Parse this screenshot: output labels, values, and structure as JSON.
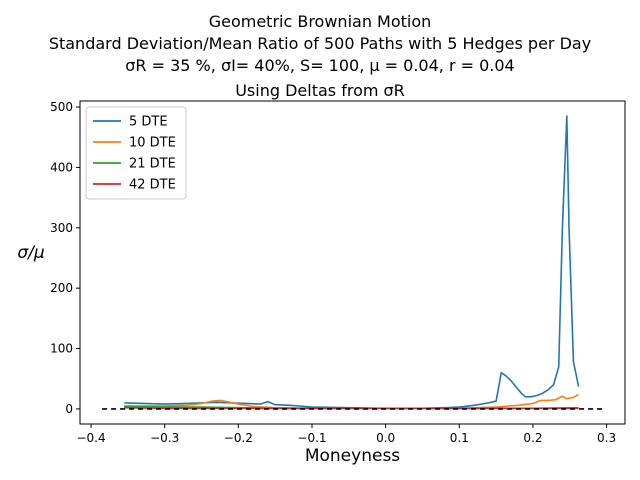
{
  "chart_data": {
    "type": "line",
    "title_lines": [
      "Geometric Brownian Motion",
      "Standard Deviation/Mean Ratio of 500 Paths with 5 Hedges per Day"
    ],
    "param_line": {
      "sigma_r_label": "σR = 35 %,",
      "sigma_i_label": "σI= 40%,",
      "rest": "S= 100, μ = 0.04, r = 0.04"
    },
    "subtitle": "Using Deltas from σR",
    "xlabel": "Moneyness",
    "ylabel": "σ/μ",
    "xlim": [
      -0.415,
      0.325
    ],
    "ylim": [
      -25,
      510
    ],
    "xticks": [
      -0.4,
      -0.3,
      -0.2,
      -0.1,
      0.0,
      0.1,
      0.2,
      0.3
    ],
    "xtick_labels": [
      "−0.4",
      "−0.3",
      "−0.2",
      "−0.1",
      "0.0",
      "0.1",
      "0.2",
      "0.3"
    ],
    "yticks": [
      0,
      100,
      200,
      300,
      400,
      500
    ],
    "ytick_labels": [
      "0",
      "100",
      "200",
      "300",
      "400",
      "500"
    ],
    "legend_position": "upper-left",
    "reference_line": {
      "y": 0,
      "x": [
        -0.385,
        0.295
      ],
      "style": "dashed",
      "color": "#000000"
    },
    "series": [
      {
        "name": "5 DTE",
        "color": "#1f77b4",
        "x": [
          -0.355,
          -0.33,
          -0.3,
          -0.27,
          -0.25,
          -0.23,
          -0.21,
          -0.19,
          -0.17,
          -0.16,
          -0.15,
          -0.13,
          -0.12,
          -0.1,
          -0.05,
          0.0,
          0.05,
          0.08,
          0.1,
          0.12,
          0.14,
          0.15,
          0.157,
          0.163,
          0.17,
          0.178,
          0.185,
          0.19,
          0.197,
          0.205,
          0.213,
          0.22,
          0.228,
          0.235,
          0.24,
          0.246,
          0.249,
          0.255,
          0.262
        ],
        "y": [
          10,
          9,
          8,
          9,
          10,
          11,
          10,
          9,
          8,
          12,
          7,
          6,
          5,
          3,
          2,
          1,
          1,
          2,
          3,
          6,
          10,
          13,
          60,
          55,
          47,
          35,
          25,
          20,
          20,
          22,
          26,
          31,
          40,
          70,
          300,
          485,
          300,
          78,
          37
        ]
      },
      {
        "name": "10 DTE",
        "color": "#ff7f0e",
        "x": [
          -0.355,
          -0.3,
          -0.27,
          -0.25,
          -0.235,
          -0.225,
          -0.215,
          -0.2,
          -0.18,
          -0.15,
          -0.1,
          0.0,
          0.1,
          0.15,
          0.18,
          0.2,
          0.21,
          0.22,
          0.23,
          0.24,
          0.245,
          0.255,
          0.262
        ],
        "y": [
          5,
          5,
          6,
          9,
          13,
          14,
          12,
          8,
          4,
          2,
          1,
          1,
          1,
          3,
          6,
          9,
          14,
          14,
          15,
          21,
          17,
          19,
          24
        ]
      },
      {
        "name": "21 DTE",
        "color": "#2ca02c",
        "x": [
          -0.355,
          -0.3,
          -0.25,
          -0.2,
          -0.15,
          -0.1,
          0.0,
          0.1,
          0.2,
          0.262
        ],
        "y": [
          4,
          3,
          3,
          2,
          1,
          1,
          1,
          1,
          1,
          2
        ]
      },
      {
        "name": "42 DTE",
        "color": "#d62728",
        "x": [
          -0.355,
          -0.3,
          -0.2,
          -0.1,
          0.0,
          0.1,
          0.2,
          0.262
        ],
        "y": [
          2,
          1,
          1,
          1,
          1,
          1,
          1,
          1
        ]
      }
    ]
  }
}
